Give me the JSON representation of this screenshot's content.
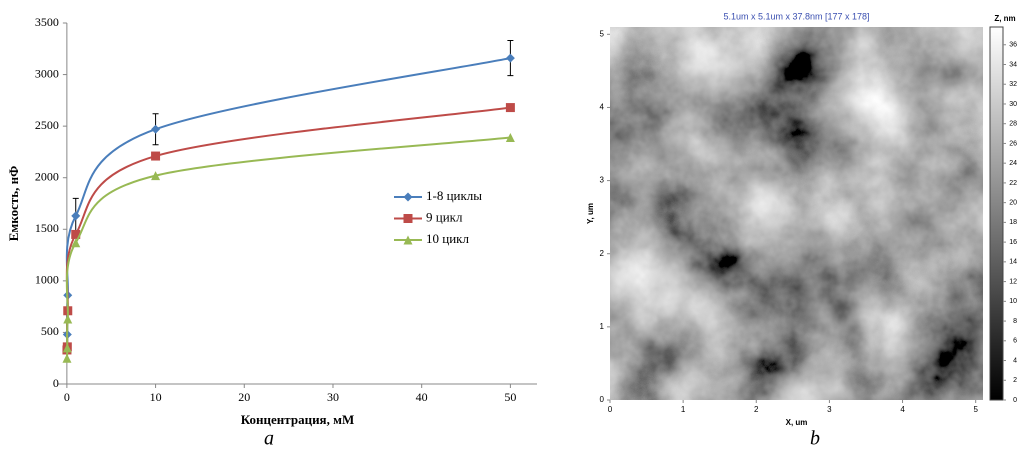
{
  "chart_data": [
    {
      "type": "line",
      "caption": "a",
      "xlabel": "Концентрация, мМ",
      "ylabel": "Емкость, нФ",
      "x": [
        0.01,
        0.05,
        0.1,
        1,
        10,
        50
      ],
      "series": [
        {
          "name": "1-8 циклы",
          "color": "#4a7ebb",
          "marker": "diamond",
          "values": [
            330,
            480,
            860,
            1630,
            2470,
            3160
          ],
          "errors": [
            null,
            null,
            null,
            170,
            150,
            170
          ]
        },
        {
          "name": "9 цикл",
          "color": "#be4b48",
          "marker": "square",
          "values": [
            330,
            360,
            710,
            1450,
            2210,
            2680
          ]
        },
        {
          "name": "10 цикл",
          "color": "#98b954",
          "marker": "triangle",
          "values": [
            250,
            350,
            630,
            1370,
            2020,
            2390
          ]
        }
      ],
      "xlim": [
        -1,
        53
      ],
      "xticks": [
        0,
        10,
        20,
        30,
        40,
        50
      ],
      "ylim": [
        0,
        3500
      ],
      "yticks": [
        0,
        500,
        1000,
        1500,
        2000,
        2500,
        3000,
        3500
      ]
    },
    {
      "type": "image",
      "caption": "b",
      "title": "5.1um x 5.1um x 37.8nm [177 x 178]",
      "xlabel": "X, um",
      "ylabel": "Y, um",
      "xlim": [
        0,
        5.1
      ],
      "xticks": [
        0,
        1,
        2,
        3,
        4,
        5
      ],
      "ylim": [
        0,
        5.1
      ],
      "yticks": [
        0,
        1,
        2,
        3,
        4,
        5
      ],
      "colorbar_label": "Z, nm",
      "zlim": [
        0,
        37.8
      ],
      "zticks": [
        0,
        2,
        4,
        6,
        8,
        10,
        12,
        14,
        16,
        18,
        20,
        22,
        24,
        26,
        28,
        30,
        32,
        34,
        36
      ]
    }
  ]
}
